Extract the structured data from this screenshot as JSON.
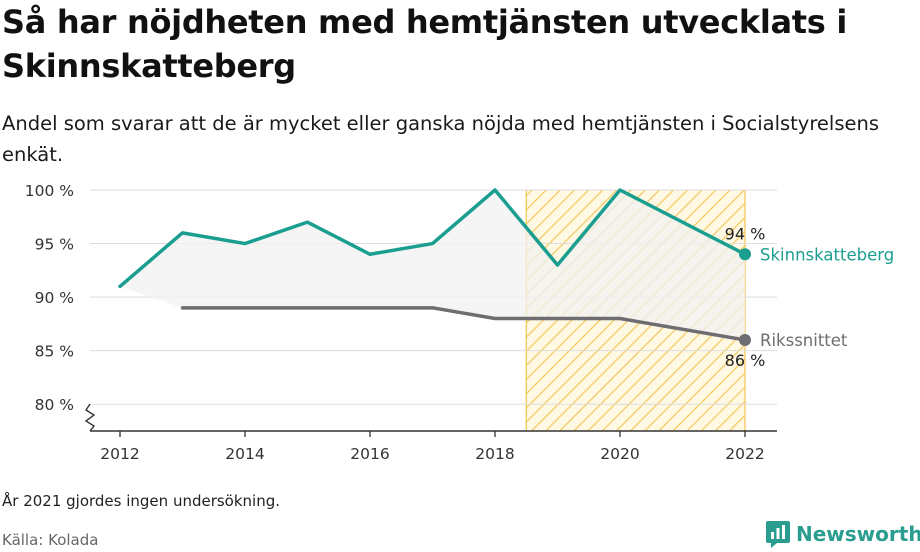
{
  "title": "Så har nöjdheten med hemtjänsten utvecklats i Skinnskatteberg",
  "subtitle": "Andel som svarar att de är mycket eller ganska nöjda med hemtjänsten i Socialstyrelsens enkät.",
  "note": "År 2021 gjordes ingen undersökning.",
  "source": "Källa: Kolada",
  "brand": {
    "name": "Newsworthy",
    "icon": "newsworthy-logo-icon"
  },
  "colors": {
    "skinnskatteberg": "#1a9e8f",
    "rikssnittet": "#6e6e72",
    "highlight": "#f5c242",
    "area": "#f2f2f2",
    "grid": "#dddddd"
  },
  "chart_data": {
    "type": "line",
    "x_ticks": [
      2012,
      2014,
      2016,
      2018,
      2020,
      2022
    ],
    "x_tick_labels": [
      "2012",
      "2014",
      "2016",
      "2018",
      "2020",
      "2022"
    ],
    "xlim": [
      2012,
      2022
    ],
    "y_ticks": [
      80,
      85,
      90,
      95,
      100
    ],
    "y_tick_labels": [
      "80 %",
      "85 %",
      "90 %",
      "95 %",
      "100 %"
    ],
    "ylim": [
      77.5,
      100
    ],
    "y_axis_broken": true,
    "grid": true,
    "highlight_range": [
      2018.5,
      2022
    ],
    "series": [
      {
        "name": "Skinnskatteberg",
        "color": "#1a9e8f",
        "x": [
          2012,
          2013,
          2014,
          2015,
          2016,
          2017,
          2018,
          2019,
          2020,
          2022
        ],
        "values": [
          91,
          96,
          95,
          97,
          94,
          95,
          100,
          93,
          100,
          94
        ],
        "end_label": "94 %"
      },
      {
        "name": "Rikssnittet",
        "color": "#6e6e72",
        "x": [
          2013,
          2014,
          2015,
          2016,
          2017,
          2018,
          2019,
          2020,
          2022
        ],
        "values": [
          89,
          89,
          89,
          89,
          89,
          88,
          88,
          88,
          86
        ],
        "end_label": "86 %"
      }
    ]
  }
}
